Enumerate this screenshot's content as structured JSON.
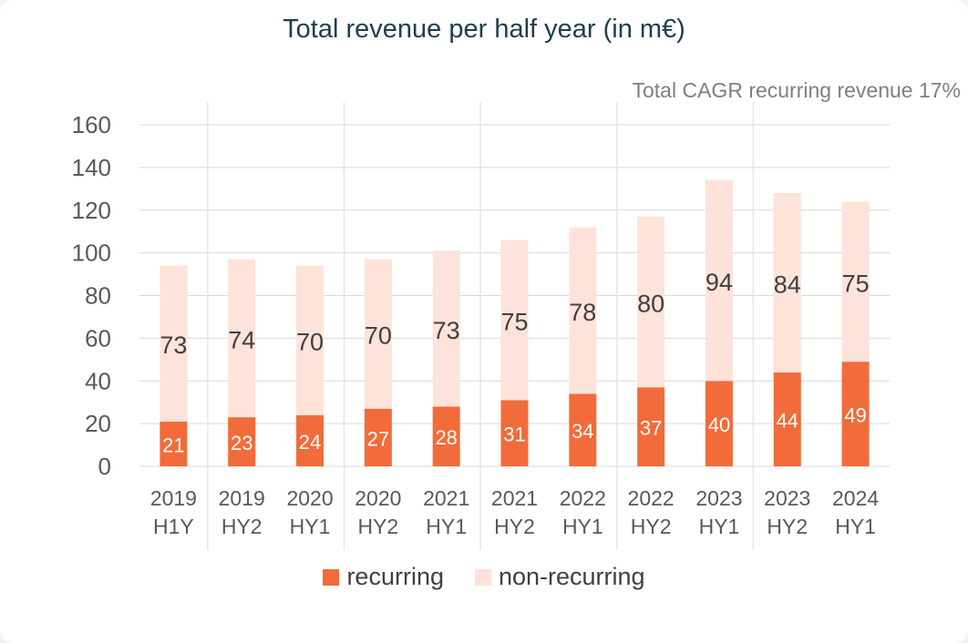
{
  "title": "Total revenue per half year (in m€)",
  "subtitle": "Total CAGR recurring revenue 17%",
  "colors": {
    "recurring": "#f26b3a",
    "non_recurring": "#fde3d9",
    "grid": "#d9d9d9",
    "axis_text": "#595959",
    "title": "#1d3f4d"
  },
  "legend": {
    "recurring": "recurring",
    "non_recurring": "non-recurring"
  },
  "chart_data": {
    "type": "bar",
    "stacked": true,
    "categories": [
      [
        "2019",
        "H1Y"
      ],
      [
        "2019",
        "HY2"
      ],
      [
        "2020",
        "HY1"
      ],
      [
        "2020",
        "HY2"
      ],
      [
        "2021",
        "HY1"
      ],
      [
        "2021",
        "HY2"
      ],
      [
        "2022",
        "HY1"
      ],
      [
        "2022",
        "HY2"
      ],
      [
        "2023",
        "HY1"
      ],
      [
        "2023",
        "HY2"
      ],
      [
        "2024",
        "HY1"
      ]
    ],
    "series": [
      {
        "name": "recurring",
        "values": [
          21,
          23,
          24,
          27,
          28,
          31,
          34,
          37,
          40,
          44,
          49
        ]
      },
      {
        "name": "non-recurring",
        "values": [
          73,
          74,
          70,
          70,
          73,
          75,
          78,
          80,
          94,
          84,
          75
        ]
      }
    ],
    "ylim": [
      0,
      160
    ],
    "yticks": [
      0,
      20,
      40,
      60,
      80,
      100,
      120,
      140,
      160
    ],
    "grid": true,
    "legend_position": "bottom"
  }
}
